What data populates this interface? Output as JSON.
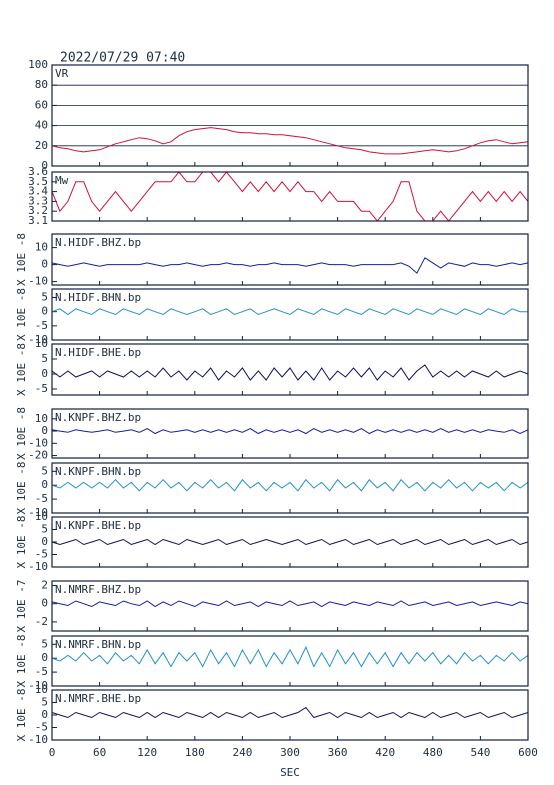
{
  "chart_data": {
    "type": "line",
    "title": "2022/07/29 07:40",
    "xlabel": "SEC",
    "xlim": [
      0,
      600
    ],
    "xticks": [
      0,
      60,
      120,
      180,
      240,
      300,
      360,
      420,
      480,
      540,
      600
    ],
    "x": [
      0,
      10,
      20,
      30,
      40,
      50,
      60,
      70,
      80,
      90,
      100,
      110,
      120,
      130,
      140,
      150,
      160,
      170,
      180,
      190,
      200,
      210,
      220,
      230,
      240,
      250,
      260,
      270,
      280,
      290,
      300,
      310,
      320,
      330,
      340,
      350,
      360,
      370,
      380,
      390,
      400,
      410,
      420,
      430,
      440,
      450,
      460,
      470,
      480,
      490,
      500,
      510,
      520,
      530,
      540,
      550,
      560,
      570,
      580,
      590,
      600
    ],
    "panels": [
      {
        "name": "VR",
        "color": "#d0103a",
        "ylim": [
          0,
          100
        ],
        "yticks": [
          0,
          20,
          40,
          60,
          80,
          100
        ],
        "grid": true,
        "values": [
          20,
          18,
          17,
          15,
          14,
          15,
          16,
          19,
          22,
          24,
          26,
          28,
          27,
          25,
          22,
          24,
          30,
          34,
          36,
          37,
          38,
          37,
          36,
          34,
          33,
          33,
          32,
          32,
          31,
          31,
          30,
          29,
          28,
          26,
          24,
          22,
          20,
          18,
          17,
          16,
          14,
          13,
          12,
          12,
          12,
          13,
          14,
          15,
          16,
          15,
          14,
          15,
          17,
          20,
          23,
          25,
          26,
          24,
          22,
          23,
          24
        ]
      },
      {
        "name": "Mw",
        "color": "#d0103a",
        "ylim": [
          3.1,
          3.6
        ],
        "yticks": [
          3.6,
          3.5,
          3.4,
          3.3,
          3.2,
          3.1
        ],
        "grid": false,
        "values": [
          3.4,
          3.2,
          3.3,
          3.5,
          3.5,
          3.3,
          3.2,
          3.3,
          3.4,
          3.3,
          3.2,
          3.3,
          3.4,
          3.5,
          3.5,
          3.5,
          3.6,
          3.5,
          3.5,
          3.6,
          3.6,
          3.5,
          3.6,
          3.5,
          3.4,
          3.5,
          3.4,
          3.5,
          3.4,
          3.5,
          3.4,
          3.5,
          3.4,
          3.4,
          3.3,
          3.4,
          3.3,
          3.3,
          3.3,
          3.2,
          3.2,
          3.1,
          3.2,
          3.3,
          3.5,
          3.5,
          3.2,
          3.1,
          3.1,
          3.2,
          3.1,
          3.2,
          3.3,
          3.4,
          3.3,
          3.4,
          3.3,
          3.4,
          3.3,
          3.4,
          3.3
        ]
      },
      {
        "name": "N.HIDF.BHZ.bp",
        "ylabel": "X 10E -8",
        "color": "#1020a0",
        "ylim": [
          -12,
          18
        ],
        "yticks": [
          10,
          0,
          -10
        ],
        "grid": false,
        "values": [
          1,
          0,
          -1,
          0,
          1,
          0,
          -1,
          0,
          0,
          0,
          0,
          0,
          1,
          0,
          -1,
          0,
          0,
          1,
          0,
          -1,
          0,
          0,
          1,
          0,
          0,
          -1,
          0,
          0,
          1,
          0,
          0,
          0,
          -1,
          0,
          1,
          0,
          0,
          0,
          -1,
          0,
          0,
          0,
          0,
          0,
          1,
          -1,
          -5,
          4,
          1,
          -2,
          1,
          0,
          -1,
          1,
          0,
          0,
          -1,
          0,
          1,
          0,
          1
        ]
      },
      {
        "name": "N.HIDF.BHN.bp",
        "ylabel": "X 10E -8",
        "color": "#2090d0",
        "ylim": [
          -10,
          8
        ],
        "yticks": [
          5,
          0,
          -5,
          -10
        ],
        "grid": false,
        "values": [
          0,
          1,
          -1,
          1,
          0,
          -1,
          1,
          0,
          -1,
          1,
          0,
          -1,
          1,
          0,
          -1,
          1,
          0,
          -1,
          0,
          1,
          -1,
          0,
          1,
          -1,
          0,
          1,
          -1,
          0,
          1,
          0,
          -1,
          1,
          0,
          -1,
          1,
          0,
          -1,
          1,
          0,
          -1,
          1,
          0,
          -1,
          1,
          0,
          -1,
          1,
          0,
          -1,
          1,
          0,
          -1,
          1,
          0,
          -1,
          1,
          0,
          -1,
          1,
          0,
          0
        ]
      },
      {
        "name": "N.HIDF.BHE.bp",
        "ylabel": "X 10E -8",
        "color": "#101060",
        "ylim": [
          -7,
          10
        ],
        "yticks": [
          10,
          5,
          0,
          -5
        ],
        "grid": false,
        "values": [
          1,
          -1,
          1,
          -1,
          0,
          1,
          -1,
          1,
          0,
          -1,
          1,
          -1,
          1,
          -1,
          2,
          -1,
          1,
          -2,
          1,
          -1,
          2,
          -2,
          1,
          -1,
          2,
          -2,
          1,
          -2,
          2,
          -1,
          2,
          -2,
          1,
          -2,
          2,
          -2,
          1,
          -1,
          2,
          -1,
          2,
          -2,
          1,
          -1,
          2,
          -2,
          1,
          3,
          -1,
          1,
          -1,
          1,
          -1,
          1,
          0,
          -1,
          1,
          -1,
          0,
          1,
          0
        ]
      },
      {
        "name": "N.KNPF.BHZ.bp",
        "ylabel": "X 10E -8",
        "color": "#1020a0",
        "ylim": [
          -22,
          18
        ],
        "yticks": [
          10,
          0,
          -10,
          -20
        ],
        "grid": false,
        "values": [
          1,
          0,
          -1,
          1,
          0,
          -1,
          0,
          1,
          -1,
          0,
          1,
          -1,
          2,
          -2,
          1,
          -1,
          0,
          1,
          -1,
          1,
          -1,
          1,
          -1,
          1,
          -1,
          2,
          -2,
          1,
          -1,
          1,
          -1,
          1,
          -2,
          2,
          -1,
          1,
          -1,
          1,
          -1,
          2,
          -2,
          1,
          -1,
          1,
          -1,
          1,
          -1,
          1,
          -1,
          2,
          -1,
          1,
          -1,
          1,
          -1,
          1,
          0,
          -1,
          1,
          -2,
          1
        ]
      },
      {
        "name": "N.KNPF.BHN.bp",
        "ylabel": "X 10E -8",
        "color": "#2090d0",
        "ylim": [
          -10,
          8
        ],
        "yticks": [
          5,
          0,
          -5,
          -10
        ],
        "grid": false,
        "values": [
          0,
          -1,
          1,
          -1,
          1,
          -1,
          1,
          -1,
          2,
          -1,
          1,
          -2,
          1,
          -1,
          2,
          -1,
          1,
          -2,
          1,
          -1,
          2,
          -1,
          1,
          -2,
          2,
          -1,
          1,
          -2,
          1,
          -1,
          1,
          -2,
          2,
          -1,
          1,
          -2,
          2,
          -1,
          1,
          -2,
          2,
          -1,
          1,
          -2,
          2,
          -1,
          1,
          -2,
          1,
          -1,
          2,
          -1,
          1,
          -2,
          1,
          -1,
          1,
          -2,
          1,
          -1,
          1
        ]
      },
      {
        "name": "N.KNPF.BHE.bp",
        "ylabel": "X 10E -8",
        "color": "#101060",
        "ylim": [
          -10,
          10
        ],
        "yticks": [
          10,
          5,
          0,
          -5,
          -10
        ],
        "grid": false,
        "values": [
          0,
          -1,
          0,
          1,
          -1,
          0,
          1,
          -1,
          0,
          1,
          -1,
          0,
          1,
          -1,
          1,
          0,
          -1,
          1,
          0,
          -1,
          0,
          1,
          -1,
          0,
          1,
          -1,
          0,
          1,
          0,
          -1,
          0,
          1,
          -1,
          0,
          1,
          -1,
          0,
          1,
          -1,
          0,
          1,
          -1,
          0,
          1,
          -1,
          0,
          1,
          -1,
          0,
          1,
          -1,
          0,
          1,
          -1,
          0,
          1,
          -1,
          0,
          1,
          -1,
          0
        ]
      },
      {
        "name": "N.NMRF.BHZ.bp",
        "ylabel": "X 10E -7",
        "color": "#1020a0",
        "ylim": [
          -3,
          2.5
        ],
        "yticks": [
          2,
          0,
          -2
        ],
        "grid": false,
        "values": [
          0.2,
          0,
          -0.2,
          0.3,
          0,
          -0.3,
          0.2,
          0,
          -0.2,
          0.3,
          0,
          -0.2,
          0.3,
          -0.3,
          0.2,
          -0.2,
          0.3,
          0,
          -0.3,
          0.2,
          0,
          -0.2,
          0.3,
          -0.2,
          0,
          0.2,
          -0.3,
          0.2,
          0,
          -0.2,
          0.3,
          -0.2,
          0,
          0.2,
          -0.3,
          0.2,
          0,
          -0.2,
          0.2,
          0,
          -0.2,
          0.2,
          0,
          -0.2,
          0.3,
          -0.2,
          0,
          0.2,
          -0.2,
          0,
          0.2,
          -0.2,
          0,
          0.2,
          -0.2,
          0,
          0.2,
          0,
          -0.2,
          0.2,
          0
        ]
      },
      {
        "name": "N.NMRF.BHN.bp",
        "ylabel": "X 10E -8",
        "color": "#2090d0",
        "ylim": [
          -10,
          8
        ],
        "yticks": [
          5,
          0,
          -5,
          -10
        ],
        "grid": false,
        "values": [
          0,
          -1,
          1,
          -1,
          2,
          -1,
          1,
          -2,
          2,
          -1,
          1,
          -2,
          3,
          -2,
          2,
          -3,
          2,
          -1,
          2,
          -3,
          3,
          -2,
          2,
          -3,
          3,
          -2,
          3,
          -3,
          2,
          -2,
          3,
          -2,
          4,
          -3,
          2,
          -3,
          3,
          -2,
          2,
          -3,
          2,
          -2,
          2,
          -3,
          2,
          -2,
          2,
          -1,
          2,
          -2,
          1,
          -2,
          2,
          -1,
          1,
          -2,
          1,
          -1,
          2,
          -1,
          1
        ]
      },
      {
        "name": "N.NMRF.BHE.bp",
        "ylabel": "X 10E -8",
        "color": "#101060",
        "ylim": [
          -10,
          10
        ],
        "yticks": [
          10,
          5,
          0,
          -5,
          -10
        ],
        "grid": false,
        "values": [
          1,
          0,
          -1,
          1,
          0,
          -1,
          1,
          0,
          -1,
          1,
          0,
          -1,
          1,
          -1,
          1,
          0,
          -1,
          1,
          0,
          -1,
          1,
          -1,
          1,
          0,
          -1,
          1,
          -1,
          0,
          1,
          -1,
          0,
          1,
          3,
          -1,
          0,
          1,
          -1,
          1,
          0,
          -1,
          1,
          -1,
          0,
          1,
          -1,
          1,
          0,
          -1,
          1,
          -1,
          0,
          1,
          -1,
          0,
          1,
          -1,
          0,
          1,
          -1,
          0,
          1
        ]
      }
    ]
  }
}
